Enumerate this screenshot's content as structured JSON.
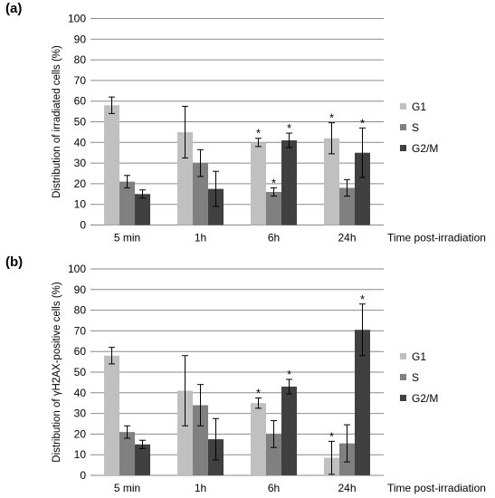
{
  "chart_data": [
    {
      "type": "bar",
      "panel_label": "(a)",
      "ylabel": "Distribution of irradiated cells (%)",
      "xlabel": "Time post-irradiation",
      "ylim": [
        0,
        100
      ],
      "yticks": [
        0,
        10,
        20,
        30,
        40,
        50,
        60,
        70,
        80,
        90,
        100
      ],
      "categories": [
        "5 min",
        "1h",
        "6h",
        "24h"
      ],
      "grid": "horizontal",
      "legend_position": "right",
      "series": [
        {
          "name": "G1",
          "color": "#c0c0c0",
          "values": [
            58,
            45,
            40,
            42
          ],
          "errors": [
            4,
            12.5,
            2,
            7.5
          ],
          "significant": [
            false,
            false,
            true,
            true
          ]
        },
        {
          "name": "S",
          "color": "#808080",
          "values": [
            21,
            30,
            16,
            18
          ],
          "errors": [
            3,
            6.5,
            2,
            4
          ],
          "significant": [
            false,
            false,
            true,
            false
          ]
        },
        {
          "name": "G2/M",
          "color": "#404040",
          "values": [
            15,
            17.5,
            41,
            35
          ],
          "errors": [
            2,
            8.5,
            3.5,
            12
          ],
          "significant": [
            false,
            false,
            true,
            true
          ]
        }
      ],
      "annotation_mark": "*"
    },
    {
      "type": "bar",
      "panel_label": "(b)",
      "ylabel": "Distribution of γH2AX-positive cells (%)",
      "xlabel": "Time post-irradiation",
      "ylim": [
        0,
        100
      ],
      "yticks": [
        0,
        10,
        20,
        30,
        40,
        50,
        60,
        70,
        80,
        90,
        100
      ],
      "categories": [
        "5 min",
        "1h",
        "6h",
        "24h"
      ],
      "grid": "horizontal",
      "legend_position": "right",
      "series": [
        {
          "name": "G1",
          "color": "#c0c0c0",
          "values": [
            58,
            41,
            35,
            8.5
          ],
          "errors": [
            4,
            17,
            2.5,
            8
          ],
          "significant": [
            false,
            false,
            true,
            true
          ]
        },
        {
          "name": "S",
          "color": "#808080",
          "values": [
            21,
            34,
            20,
            15.5
          ],
          "errors": [
            3,
            10,
            6.5,
            9
          ],
          "significant": [
            false,
            false,
            false,
            false
          ]
        },
        {
          "name": "G2/M",
          "color": "#404040",
          "values": [
            15,
            17.5,
            43,
            70.5
          ],
          "errors": [
            2,
            10,
            3.5,
            12.5
          ],
          "significant": [
            false,
            false,
            true,
            true
          ]
        }
      ],
      "annotation_mark": "*"
    }
  ]
}
